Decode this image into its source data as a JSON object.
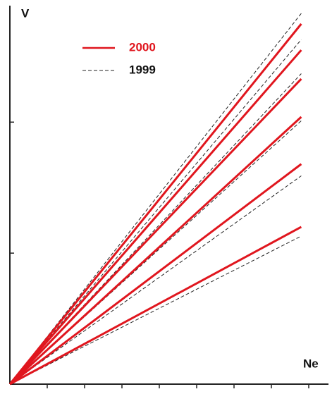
{
  "chart_data": {
    "type": "line",
    "x_label": "Ne",
    "y_label": "V",
    "x": [
      0,
      7.8
    ],
    "xlim": [
      0,
      8.5
    ],
    "ylim": [
      0,
      2.9
    ],
    "xticks": [
      1,
      2,
      3,
      4,
      5,
      6,
      7,
      8
    ],
    "yticks": [
      1,
      2
    ],
    "series": [
      {
        "name": "2000",
        "color": "#e0161e",
        "dashed": false,
        "lines": [
          [
            0,
            2.75
          ],
          [
            0,
            2.55
          ],
          [
            0,
            2.33
          ],
          [
            0,
            2.04
          ],
          [
            0,
            1.68
          ],
          [
            0,
            1.2
          ]
        ]
      },
      {
        "name": "1999",
        "color": "#222222",
        "dashed": true,
        "lines": [
          [
            0,
            2.83
          ],
          [
            0,
            2.63
          ],
          [
            0,
            2.37
          ],
          [
            0,
            2.01
          ],
          [
            0,
            1.59
          ],
          [
            0,
            1.13
          ]
        ]
      }
    ]
  }
}
